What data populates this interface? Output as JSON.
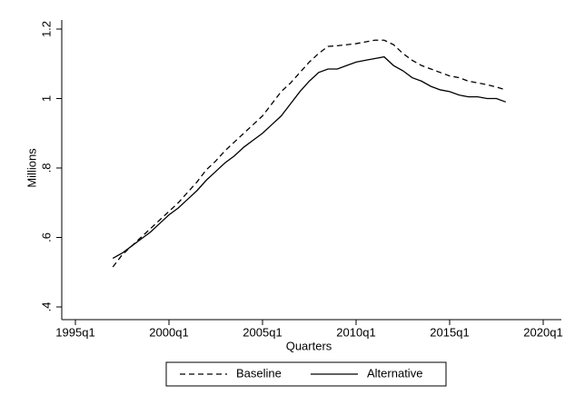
{
  "chart_data": {
    "type": "line",
    "y_label": "Millions",
    "x_label": "Quarters",
    "x": [
      "1997q1",
      "1997q3",
      "1998q1",
      "1998q3",
      "1999q1",
      "1999q3",
      "2000q1",
      "2000q3",
      "2001q1",
      "2001q3",
      "2002q1",
      "2002q3",
      "2003q1",
      "2003q3",
      "2004q1",
      "2004q3",
      "2005q1",
      "2005q3",
      "2006q1",
      "2006q3",
      "2007q1",
      "2007q3",
      "2008q1",
      "2008q3",
      "2009q1",
      "2009q3",
      "2010q1",
      "2010q3",
      "2011q1",
      "2011q3",
      "2012q1",
      "2012q3",
      "2013q1",
      "2013q3",
      "2014q1",
      "2014q3",
      "2015q1",
      "2015q3",
      "2016q1",
      "2016q3",
      "2017q1",
      "2017q3",
      "2018q1"
    ],
    "series": [
      {
        "name": "Baseline",
        "color": "#000000",
        "dash": true,
        "values": [
          0.515,
          0.55,
          0.575,
          0.6,
          0.625,
          0.65,
          0.675,
          0.7,
          0.73,
          0.76,
          0.795,
          0.82,
          0.85,
          0.875,
          0.9,
          0.925,
          0.95,
          0.985,
          1.02,
          1.045,
          1.075,
          1.105,
          1.13,
          1.15,
          1.152,
          1.155,
          1.158,
          1.163,
          1.168,
          1.168,
          1.155,
          1.13,
          1.11,
          1.095,
          1.085,
          1.075,
          1.065,
          1.06,
          1.05,
          1.045,
          1.04,
          1.033,
          1.025
        ]
      },
      {
        "name": "Alternative",
        "color": "#000000",
        "dash": false,
        "values": [
          0.54,
          0.555,
          0.575,
          0.595,
          0.615,
          0.64,
          0.665,
          0.685,
          0.71,
          0.735,
          0.765,
          0.79,
          0.815,
          0.835,
          0.86,
          0.88,
          0.9,
          0.925,
          0.95,
          0.985,
          1.02,
          1.05,
          1.075,
          1.085,
          1.085,
          1.095,
          1.105,
          1.11,
          1.115,
          1.12,
          1.095,
          1.08,
          1.06,
          1.05,
          1.035,
          1.025,
          1.02,
          1.01,
          1.005,
          1.005,
          1.0,
          1.0,
          0.99
        ]
      }
    ],
    "xlim": [
      "1995q1",
      "2020q1"
    ],
    "xticks": [
      "1995q1",
      "2000q1",
      "2005q1",
      "2010q1",
      "2015q1",
      "2020q1"
    ],
    "ylim": [
      0.4,
      1.2
    ],
    "yticks": [
      {
        "value": 0.4,
        "label": ".4"
      },
      {
        "value": 0.6,
        "label": ".6"
      },
      {
        "value": 0.8,
        "label": ".8"
      },
      1,
      1.2
    ],
    "legend": "bottom"
  }
}
